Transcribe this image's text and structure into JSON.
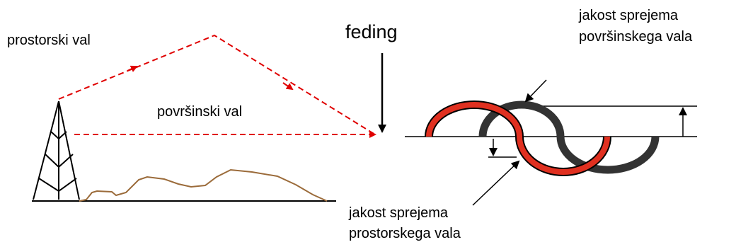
{
  "labels": {
    "sky_wave": "prostorski val",
    "ground_wave": "površinski val",
    "fading": "feding",
    "ground_strength": [
      "jakost sprejema",
      "površinskega vala"
    ],
    "sky_strength": [
      "jakost sprejema",
      "prostorskega vala"
    ]
  }
}
